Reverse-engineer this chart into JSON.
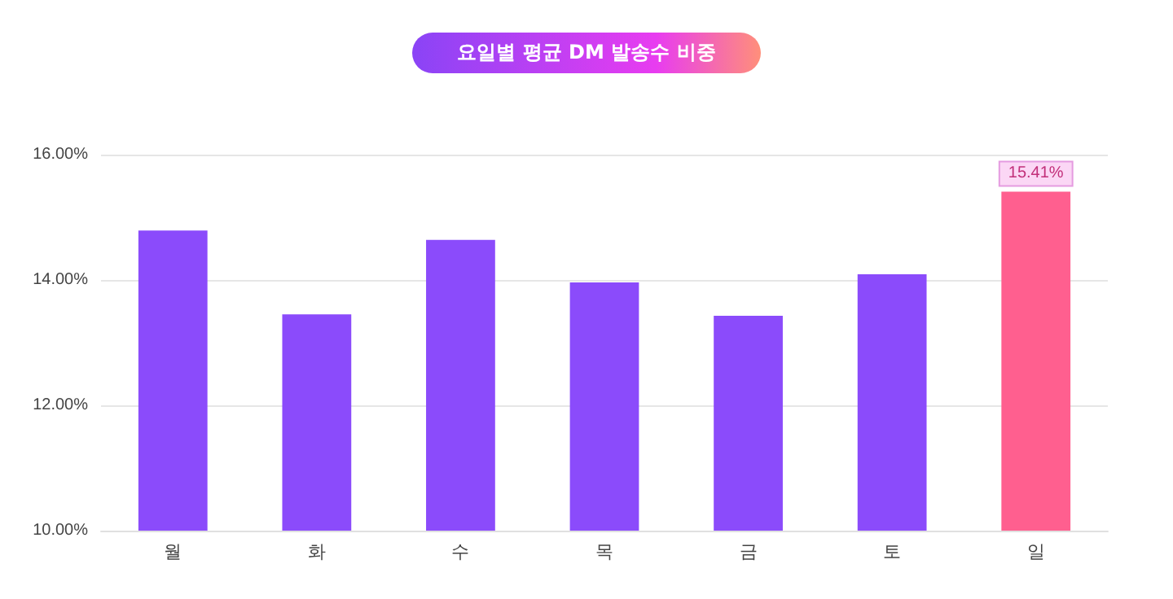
{
  "chart_data": {
    "type": "bar",
    "title": "요일별 평균 DM 발송수 비중",
    "categories": [
      "월",
      "화",
      "수",
      "목",
      "금",
      "토",
      "일"
    ],
    "values": [
      14.79,
      13.45,
      14.64,
      13.96,
      13.43,
      14.09,
      15.41
    ],
    "colors": [
      "#8b4bfb",
      "#8b4bfb",
      "#8b4bfb",
      "#8b4bfb",
      "#8b4bfb",
      "#8b4bfb",
      "#ff5f8f"
    ],
    "value_labels": [
      null,
      null,
      null,
      null,
      null,
      null,
      "15.41%"
    ],
    "ylim": [
      10,
      16
    ],
    "yticks": [
      {
        "value": 10,
        "label": "10.00%"
      },
      {
        "value": 12,
        "label": "12.00%"
      },
      {
        "value": 14,
        "label": "14.00%"
      },
      {
        "value": 16,
        "label": "16.00%"
      }
    ],
    "grid": "y"
  }
}
